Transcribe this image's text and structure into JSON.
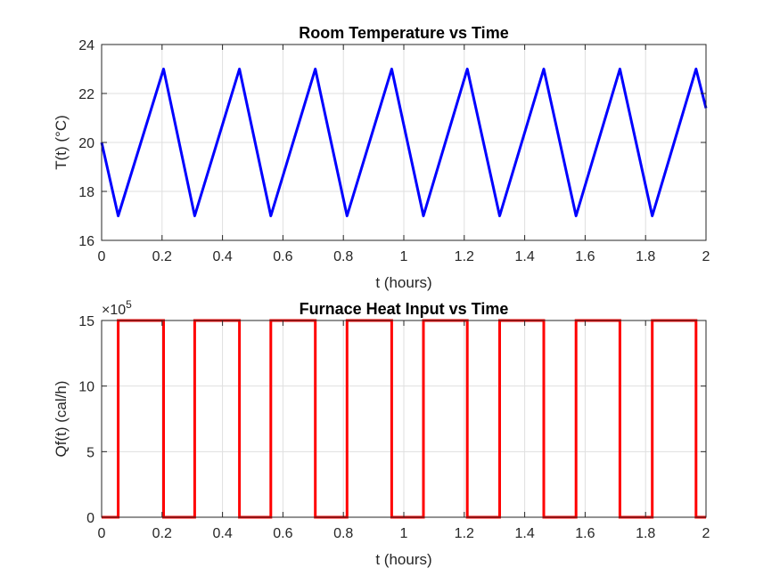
{
  "chart_data": [
    {
      "type": "line",
      "title": "Room Temperature vs Time",
      "xlabel": "t (hours)",
      "ylabel": "T(t) (°C)",
      "xlim": [
        0,
        2
      ],
      "ylim": [
        16,
        24
      ],
      "xticks": [
        0,
        0.2,
        0.4,
        0.6,
        0.8,
        1,
        1.2,
        1.4,
        1.6,
        1.8,
        2
      ],
      "xtick_labels": [
        "0",
        "0.2",
        "0.4",
        "0.6",
        "0.8",
        "1",
        "1.2",
        "1.4",
        "1.6",
        "1.8",
        "2"
      ],
      "yticks": [
        16,
        18,
        20,
        22,
        24
      ],
      "ytick_labels": [
        "16",
        "18",
        "20",
        "22",
        "24"
      ],
      "grid": true,
      "series": [
        {
          "color": "#0000ff",
          "x": [
            0,
            0.055,
            0.205,
            0.308,
            0.456,
            0.56,
            0.707,
            0.812,
            0.96,
            1.065,
            1.21,
            1.317,
            1.463,
            1.57,
            1.715,
            1.822,
            1.967,
            2
          ],
          "y": [
            20,
            17,
            23,
            17,
            23,
            17,
            23,
            17,
            23,
            17,
            23,
            17,
            23,
            17,
            23,
            17,
            23,
            21.4
          ]
        }
      ]
    },
    {
      "type": "line",
      "title": "Furnace Heat Input vs Time",
      "xlabel": "t (hours)",
      "ylabel": "Qf(t) (cal/h)",
      "xlim": [
        0,
        2
      ],
      "ylim": [
        0,
        15
      ],
      "exponent_label": "×10",
      "exponent_power": "5",
      "xticks": [
        0,
        0.2,
        0.4,
        0.6,
        0.8,
        1,
        1.2,
        1.4,
        1.6,
        1.8,
        2
      ],
      "xtick_labels": [
        "0",
        "0.2",
        "0.4",
        "0.6",
        "0.8",
        "1",
        "1.2",
        "1.4",
        "1.6",
        "1.8",
        "2"
      ],
      "yticks": [
        0,
        5,
        10,
        15
      ],
      "ytick_labels": [
        "0",
        "5",
        "10",
        "15"
      ],
      "grid": true,
      "series": [
        {
          "color": "#ff0000",
          "on_value": 15,
          "off_value": 0,
          "on_intervals": [
            [
              0.055,
              0.205
            ],
            [
              0.308,
              0.456
            ],
            [
              0.56,
              0.707
            ],
            [
              0.812,
              0.96
            ],
            [
              1.065,
              1.21
            ],
            [
              1.317,
              1.463
            ],
            [
              1.57,
              1.715
            ],
            [
              1.822,
              1.967
            ]
          ]
        }
      ]
    }
  ]
}
